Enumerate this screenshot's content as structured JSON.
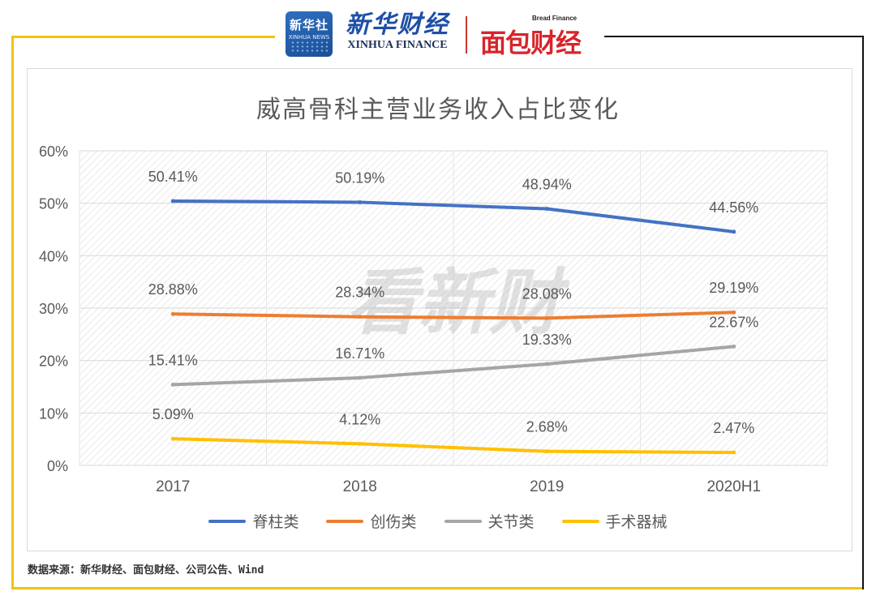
{
  "header": {
    "badge_cn": "新华社",
    "badge_en": "XINHUA NEWS",
    "xinhua_cn": "新华财经",
    "xinhua_en": "XINHUA FINANCE",
    "bread_en": "Bread Finance",
    "bread_cn": "面包财经"
  },
  "chart_data": {
    "type": "line",
    "title": "威高骨科主营业务收入占比变化",
    "categories": [
      "2017",
      "2018",
      "2019",
      "2020H1"
    ],
    "ylim": [
      0,
      60
    ],
    "yticks": [
      0,
      10,
      20,
      30,
      40,
      50,
      60
    ],
    "ytick_labels": [
      "0%",
      "10%",
      "20%",
      "30%",
      "40%",
      "50%",
      "60%"
    ],
    "grid": true,
    "legend_position": "bottom",
    "series": [
      {
        "name": "脊柱类",
        "values": [
          50.41,
          50.19,
          48.94,
          44.56
        ],
        "labels": [
          "50.41%",
          "50.19%",
          "48.94%",
          "44.56%"
        ],
        "color": "#4472c4"
      },
      {
        "name": "创伤类",
        "values": [
          28.88,
          28.34,
          28.08,
          29.19
        ],
        "labels": [
          "28.88%",
          "28.34%",
          "28.08%",
          "29.19%"
        ],
        "color": "#ed7d31"
      },
      {
        "name": "关节类",
        "values": [
          15.41,
          16.71,
          19.33,
          22.67
        ],
        "labels": [
          "15.41%",
          "16.71%",
          "19.33%",
          "22.67%"
        ],
        "color": "#a5a5a5"
      },
      {
        "name": "手术器械",
        "values": [
          5.09,
          4.12,
          2.68,
          2.47
        ],
        "labels": [
          "5.09%",
          "4.12%",
          "2.68%",
          "2.47%"
        ],
        "color": "#ffc000"
      }
    ]
  },
  "watermark": "看新财",
  "source": "数据来源：新华财经、面包财经、公司公告、Wind"
}
